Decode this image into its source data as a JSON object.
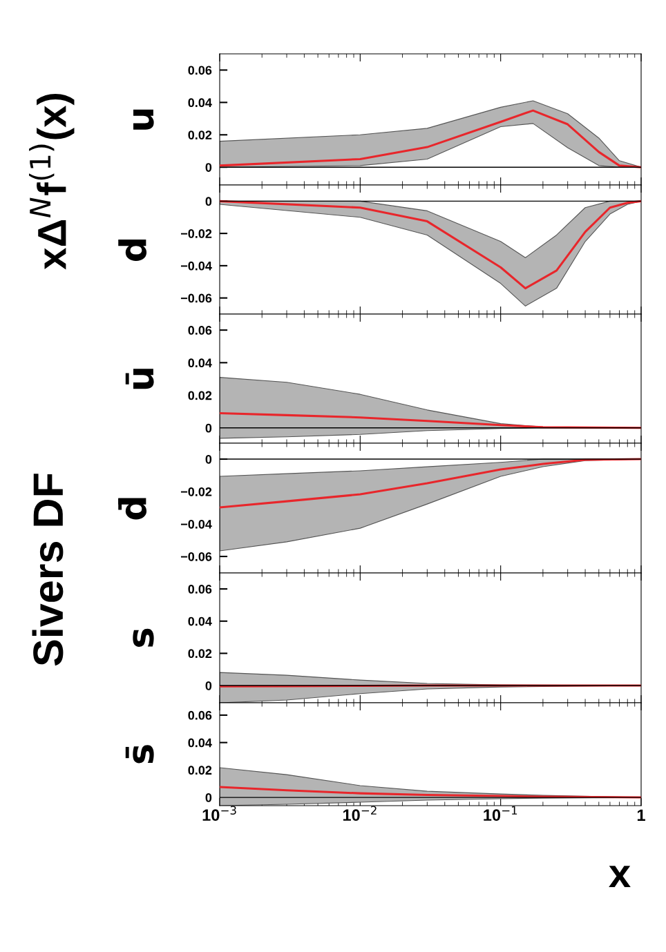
{
  "chart_data": [
    {
      "type": "line",
      "title": "Sivers DF",
      "annotations": [
        "xΔ$^{N}$f$^{(1)}$(x)"
      ],
      "ylabel": "u",
      "xlim": [
        0.001,
        1
      ],
      "ylim": [
        -0.011,
        0.07
      ],
      "yticks": [
        0,
        0.02,
        0.04,
        0.06
      ],
      "log": "x",
      "tick_labels": "y",
      "ref_lines": [
        {
          "axis": "y",
          "value": 0,
          "color": "#000000"
        }
      ],
      "series": [
        {
          "color": "#e8262b",
          "x": [
            0.001,
            0.01,
            0.03,
            0.1,
            0.17,
            0.3,
            0.5,
            0.7,
            1
          ],
          "values": [
            0.001,
            0.005,
            0.0124,
            0.028,
            0.035,
            0.0265,
            0.0094,
            0.001,
            0
          ],
          "lower": [
            0,
            0.001,
            0.005,
            0.025,
            0.027,
            0.012,
            0.001,
            0,
            0
          ],
          "upper": [
            0.016,
            0.02,
            0.024,
            0.037,
            0.041,
            0.033,
            0.018,
            0.004,
            0
          ]
        }
      ]
    },
    {
      "type": "line",
      "ylabel": "d",
      "xlim": [
        0.001,
        1
      ],
      "ylim": [
        -0.07,
        0.01
      ],
      "yticks": [
        0,
        {
          "value": -0.02,
          "label": "−0.02"
        },
        {
          "value": -0.04,
          "label": "−0.04"
        },
        {
          "value": -0.06,
          "label": "−0.06"
        }
      ],
      "log": "x",
      "tick_labels": "y",
      "ref_lines": [
        {
          "axis": "y",
          "value": 0,
          "color": "#000000"
        }
      ],
      "series": [
        {
          "color": "#e8262b",
          "x": [
            0.001,
            0.01,
            0.03,
            0.1,
            0.15,
            0.25,
            0.4,
            0.6,
            0.8,
            1
          ],
          "values": [
            0,
            -0.004,
            -0.0125,
            -0.041,
            -0.054,
            -0.043,
            -0.019,
            -0.004,
            -0.001,
            0
          ],
          "lower": [
            -0.002,
            -0.01,
            -0.021,
            -0.051,
            -0.065,
            -0.054,
            -0.025,
            -0.008,
            -0.002,
            0
          ],
          "upper": [
            0,
            0,
            -0.006,
            -0.025,
            -0.035,
            -0.021,
            -0.004,
            0,
            0,
            0
          ]
        }
      ]
    },
    {
      "type": "line",
      "ylabel": "ū",
      "xlim": [
        0.001,
        1
      ],
      "ylim": [
        -0.0094,
        0.0698
      ],
      "yticks": [
        0,
        0.02,
        0.04,
        0.06
      ],
      "log": "x",
      "tick_labels": "y",
      "ref_lines": [
        {
          "axis": "y",
          "value": 0,
          "color": "#000000"
        }
      ],
      "series": [
        {
          "color": "#e8262b",
          "x": [
            0.001,
            0.003,
            0.01,
            0.03,
            0.1,
            0.2,
            1
          ],
          "values": [
            0.009,
            0.0078,
            0.0064,
            0.0043,
            0.0017,
            0.0004,
            0
          ],
          "lower": [
            -0.0064,
            -0.0055,
            -0.004,
            -0.0017,
            -0.0004,
            0,
            0
          ],
          "upper": [
            0.031,
            0.028,
            0.0206,
            0.011,
            0.0026,
            0.0006,
            0
          ]
        }
      ]
    },
    {
      "type": "line",
      "ylabel": "d̄",
      "xlim": [
        0.001,
        1
      ],
      "ylim": [
        -0.0702,
        0.0098
      ],
      "yticks": [
        0,
        {
          "value": -0.02,
          "label": "−0.02"
        },
        {
          "value": -0.04,
          "label": "−0.04"
        },
        {
          "value": -0.06,
          "label": "−0.06"
        }
      ],
      "log": "x",
      "tick_labels": "y",
      "ref_lines": [
        {
          "axis": "y",
          "value": 0,
          "color": "#000000"
        }
      ],
      "series": [
        {
          "color": "#e8262b",
          "x": [
            0.001,
            0.003,
            0.01,
            0.03,
            0.1,
            0.2,
            0.4,
            1
          ],
          "values": [
            -0.0298,
            -0.026,
            -0.0217,
            -0.0149,
            -0.0064,
            -0.003,
            -0.0004,
            0
          ],
          "lower": [
            -0.0566,
            -0.051,
            -0.0426,
            -0.0277,
            -0.0106,
            -0.0047,
            -0.0009,
            0
          ],
          "upper": [
            -0.0106,
            -0.009,
            -0.0072,
            -0.0047,
            -0.002,
            0,
            0,
            0
          ]
        }
      ]
    },
    {
      "type": "line",
      "ylabel": "s",
      "xlim": [
        0.001,
        1
      ],
      "ylim": [
        -0.0107,
        0.0699
      ],
      "yticks": [
        0,
        0.02,
        0.04,
        0.06
      ],
      "log": "x",
      "tick_labels": "y",
      "ref_lines": [
        {
          "axis": "y",
          "value": 0,
          "color": "#000000"
        }
      ],
      "series": [
        {
          "color": "#e8262b",
          "x": [
            0.001,
            0.003,
            0.01,
            0.03,
            0.1,
            1
          ],
          "values": [
            -0.0005,
            -0.0004,
            -0.0002,
            0,
            0,
            0
          ],
          "lower": [
            -0.0107,
            -0.009,
            -0.005,
            -0.0021,
            -0.0009,
            0
          ],
          "upper": [
            0.0081,
            0.0064,
            0.0034,
            0.0013,
            0.0004,
            0
          ]
        }
      ]
    },
    {
      "type": "line",
      "xlabel": "x",
      "ylabel": "s̄",
      "xlim": [
        0.001,
        1
      ],
      "ylim": [
        -0.006,
        0.069
      ],
      "xticks": [
        {
          "value": 0.001,
          "label": "10$^{−3}$"
        },
        {
          "value": 0.01,
          "label": "10$^{−2}$"
        },
        {
          "value": 0.1,
          "label": "10$^{−1}$"
        },
        1
      ],
      "yticks": [
        0,
        0.02,
        0.04,
        0.06
      ],
      "log": "x",
      "ref_lines": [
        {
          "axis": "y",
          "value": 0,
          "color": "#000000"
        }
      ],
      "series": [
        {
          "color": "#e8262b",
          "x": [
            0.001,
            0.003,
            0.01,
            0.03,
            0.1,
            0.2,
            1
          ],
          "values": [
            0.0076,
            0.0052,
            0.003,
            0.0018,
            0.001,
            0.0005,
            0
          ],
          "lower": [
            -0.006,
            -0.005,
            -0.0035,
            -0.002,
            -0.001,
            -0.0005,
            0
          ],
          "upper": [
            0.0217,
            0.0166,
            0.0086,
            0.0045,
            0.0025,
            0.0015,
            0
          ]
        }
      ]
    }
  ]
}
